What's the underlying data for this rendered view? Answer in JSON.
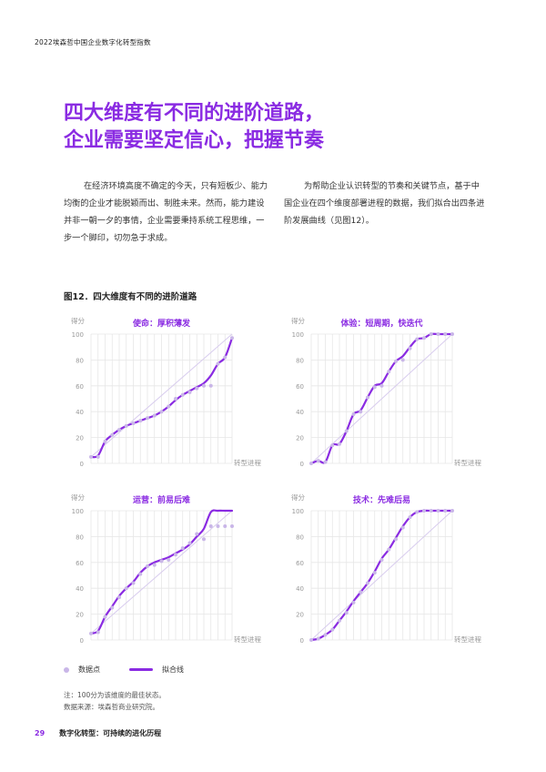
{
  "header": {
    "title": "2022埃森哲中国企业数字化转型指数"
  },
  "headline": {
    "line1": "四大维度有不同的进阶道路，",
    "line2": "企业需要坚定信心，把握节奏"
  },
  "body": {
    "left": "在经济环境高度不确定的今天，只有短板少、能力均衡的企业才能脱颖而出、制胜未来。然而，能力建设并非一朝一夕的事情，企业需要秉持系统工程思维，一步一个脚印，切勿急于求成。",
    "right": "为帮助企业认识转型的节奏和关键节点，基于中国企业在四个维度部署进程的数据，我们拟合出四条进阶发展曲线（见图12）。"
  },
  "figure": {
    "title": "图12．四大维度有不同的进阶道路",
    "legend": {
      "points": "数据点",
      "fit": "拟合线"
    },
    "note": "注：100分为该维度的最佳状态。",
    "source": "数据来源：埃森哲商业研究院。",
    "colors": {
      "fit": "#8a2be2",
      "points": "#c9b6e8",
      "grid": "#e6e6e6",
      "axis_text": "#999999"
    }
  },
  "chart_data": [
    {
      "type": "line",
      "title": "使命：厚积薄发",
      "ylabel": "得分",
      "xlabel": "转型进程",
      "ylim": [
        0,
        100
      ],
      "yticks": [
        0,
        20,
        40,
        60,
        80,
        100
      ],
      "grid": true,
      "x": [
        0,
        1,
        2,
        3,
        4,
        5,
        6,
        7,
        8,
        9,
        10,
        11,
        12,
        13,
        14,
        15,
        16,
        17,
        18,
        19,
        20
      ],
      "series": [
        {
          "name": "拟合线",
          "values": [
            5,
            6,
            17,
            22,
            26,
            29,
            31,
            33,
            35,
            37,
            40,
            44,
            49,
            53,
            56,
            59,
            62,
            68,
            77,
            82,
            97
          ]
        },
        {
          "name": "数据点",
          "values": [
            5,
            5,
            17,
            22,
            26,
            29,
            31,
            33,
            35,
            37,
            40,
            44,
            50,
            53,
            55,
            58,
            60,
            60,
            77,
            82,
            97
          ]
        }
      ]
    },
    {
      "type": "line",
      "title": "体验：短周期，快迭代",
      "ylabel": "得分",
      "xlabel": "转型进程",
      "ylim": [
        0,
        100
      ],
      "yticks": [
        0,
        20,
        40,
        60,
        80,
        100
      ],
      "grid": true,
      "x": [
        0,
        1,
        2,
        3,
        4,
        5,
        6,
        7,
        8,
        9,
        10,
        11,
        12,
        13,
        14,
        15,
        16,
        17,
        18,
        19,
        20
      ],
      "series": [
        {
          "name": "拟合线",
          "values": [
            0,
            2,
            1,
            14,
            15,
            25,
            38,
            41,
            51,
            60,
            62,
            71,
            79,
            83,
            90,
            96,
            97,
            100,
            100,
            100,
            100
          ]
        },
        {
          "name": "数据点",
          "values": [
            0,
            2,
            1,
            14,
            15,
            25,
            38,
            40,
            51,
            59,
            60,
            71,
            79,
            80,
            89,
            96,
            97,
            100,
            100,
            100,
            100
          ]
        }
      ]
    },
    {
      "type": "line",
      "title": "运营：前易后难",
      "ylabel": "得分",
      "xlabel": "转型进程",
      "ylim": [
        0,
        100
      ],
      "yticks": [
        0,
        20,
        40,
        60,
        80,
        100
      ],
      "grid": true,
      "x": [
        0,
        1,
        2,
        3,
        4,
        5,
        6,
        7,
        8,
        9,
        10,
        11,
        12,
        13,
        14,
        15,
        16,
        17,
        18,
        19,
        20
      ],
      "series": [
        {
          "name": "拟合线",
          "values": [
            5,
            7,
            18,
            26,
            34,
            40,
            45,
            52,
            57,
            60,
            62,
            64,
            67,
            70,
            74,
            80,
            86,
            99,
            100,
            100,
            100
          ]
        },
        {
          "name": "数据点",
          "values": [
            5,
            6,
            18,
            25,
            33,
            40,
            44,
            51,
            57,
            58,
            61,
            62,
            66,
            71,
            75,
            82,
            78,
            88,
            88,
            88,
            88
          ]
        }
      ]
    },
    {
      "type": "line",
      "title": "技术：先难后易",
      "ylabel": "得分",
      "xlabel": "转型进程",
      "ylim": [
        0,
        100
      ],
      "yticks": [
        0,
        20,
        40,
        60,
        80,
        100
      ],
      "grid": true,
      "x": [
        0,
        1,
        2,
        3,
        4,
        5,
        6,
        7,
        8,
        9,
        10,
        11,
        12,
        13,
        14,
        15,
        16,
        17,
        18,
        19,
        20
      ],
      "series": [
        {
          "name": "拟合线",
          "values": [
            0,
            1,
            4,
            8,
            15,
            22,
            30,
            37,
            44,
            53,
            63,
            70,
            79,
            88,
            95,
            99,
            100,
            100,
            100,
            100,
            100
          ]
        },
        {
          "name": "数据点",
          "values": [
            0,
            1,
            4,
            8,
            15,
            21,
            29,
            37,
            44,
            52,
            62,
            70,
            78,
            87,
            95,
            99,
            100,
            100,
            100,
            100,
            100
          ]
        }
      ]
    }
  ]
}
